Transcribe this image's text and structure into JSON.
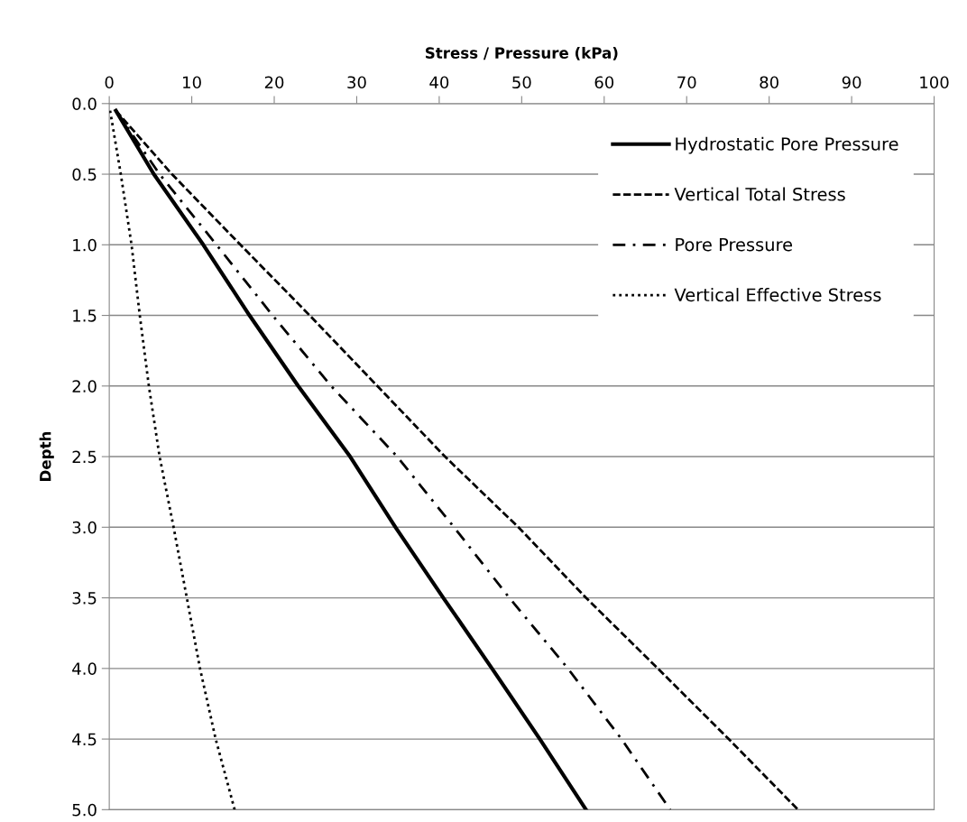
{
  "chart_data": {
    "type": "line",
    "xlabel": "Stress / Pressure (kPa)",
    "ylabel": "Depth",
    "xlim": [
      0,
      100
    ],
    "xticks": [
      0,
      10,
      20,
      30,
      40,
      50,
      60,
      70,
      80,
      90,
      100
    ],
    "ylim": [
      5,
      0
    ],
    "yticks": [
      {
        "value": 0,
        "label": "0.0"
      },
      {
        "value": 0.5,
        "label": "0.5"
      },
      {
        "value": 1,
        "label": "1.0"
      },
      {
        "value": 1.5,
        "label": "1.5"
      },
      {
        "value": 2,
        "label": "2.0"
      },
      {
        "value": 2.5,
        "label": "2.5"
      },
      {
        "value": 3,
        "label": "3.0"
      },
      {
        "value": 3.5,
        "label": "3.5"
      },
      {
        "value": 4,
        "label": "4.0"
      },
      {
        "value": 4.5,
        "label": "4.5"
      },
      {
        "value": 5,
        "label": "5.0"
      }
    ],
    "grid": "y",
    "legend": "top right",
    "marker": "none",
    "series": [
      {
        "name": "Hydrostatic Pore Pressure",
        "color": "#000000",
        "line_style": "solid",
        "x": [
          0.8,
          5.4,
          11.4,
          17.0,
          22.9,
          29.2,
          34.7,
          40.5,
          46.4,
          52.2,
          57.8
        ],
        "values": [
          0.05,
          0.5,
          1.0,
          1.5,
          2.0,
          2.5,
          3.0,
          3.5,
          4.0,
          4.5,
          5.0
        ]
      },
      {
        "name": "Vertical Total Stress",
        "color": "#000000",
        "line_style": "dashed",
        "x": [
          0.8,
          7.6,
          15.9,
          24.3,
          32.5,
          40.7,
          49.6,
          57.8,
          66.5,
          75.1,
          83.5
        ],
        "values": [
          0.05,
          0.5,
          1.0,
          1.5,
          2.0,
          2.5,
          3.0,
          3.5,
          4.0,
          4.5,
          5.0
        ]
      },
      {
        "name": "Pore Pressure",
        "color": "#000000",
        "line_style": "dashdot",
        "x": [
          0.8,
          6.1,
          13.0,
          19.8,
          26.9,
          34.9,
          41.8,
          48.5,
          55.6,
          62.1,
          68.0
        ],
        "values": [
          0.05,
          0.5,
          1.0,
          1.5,
          2.0,
          2.5,
          3.0,
          3.5,
          4.0,
          4.5,
          5.0
        ]
      },
      {
        "name": "Vertical Effective Stress",
        "color": "#000000",
        "line_style": "dotted",
        "x": [
          0.1,
          1.4,
          2.7,
          3.7,
          4.8,
          6.1,
          7.8,
          9.4,
          11.0,
          12.9,
          15.2
        ],
        "values": [
          0.05,
          0.5,
          1.0,
          1.5,
          2.0,
          2.5,
          3.0,
          3.5,
          4.0,
          4.5,
          5.0
        ]
      }
    ]
  }
}
